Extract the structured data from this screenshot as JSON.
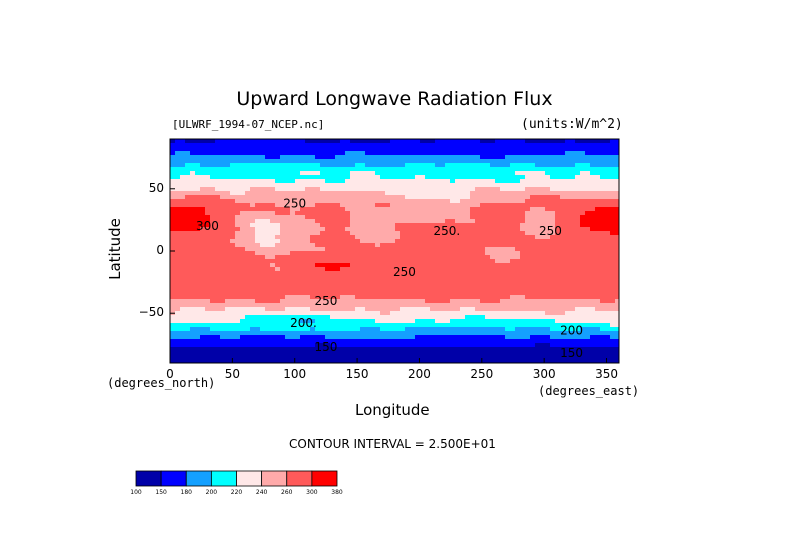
{
  "chart_data": {
    "type": "heatmap",
    "title": "Upward Longwave Radiation Flux",
    "source_file": "[ULWRF_1994-07_NCEP.nc]",
    "units": "(units:W/m^2)",
    "xlabel": "Longitude",
    "ylabel": "Latitude",
    "x_unit_label": "(degrees_east)",
    "y_unit_label": "(degrees_north)",
    "xlim": [
      0,
      360
    ],
    "ylim": [
      -90,
      90
    ],
    "x_ticks": [
      0,
      50,
      100,
      150,
      200,
      250,
      300,
      350
    ],
    "y_ticks": [
      50,
      0,
      -50
    ],
    "y_tick_labels": [
      "50",
      "0",
      "−50"
    ],
    "contour_interval_text": "CONTOUR INTERVAL = 2.500E+01",
    "contour_labels": [
      {
        "text": "250",
        "lon": 100,
        "lat": 38
      },
      {
        "text": "300",
        "lon": 30,
        "lat": 20
      },
      {
        "text": "250.",
        "lon": 222,
        "lat": 16
      },
      {
        "text": "250",
        "lon": 305,
        "lat": 16
      },
      {
        "text": "250",
        "lon": 188,
        "lat": -17
      },
      {
        "text": "250",
        "lon": 125,
        "lat": -40
      },
      {
        "text": "200.",
        "lon": 107,
        "lat": -58
      },
      {
        "text": "200",
        "lon": 322,
        "lat": -64
      },
      {
        "text": "150",
        "lon": 125,
        "lat": -77
      },
      {
        "text": "150",
        "lon": 322,
        "lat": -82
      }
    ],
    "colorbar": {
      "levels": [
        "100",
        "150",
        "180",
        "200",
        "220",
        "240",
        "260",
        "300",
        "380"
      ],
      "colors": [
        "#0000a8",
        "#0000ff",
        "#14a0ff",
        "#00ffff",
        "#ffe8e8",
        "#ffaaaa",
        "#ff5a5a",
        "#ff0000"
      ]
    }
  }
}
